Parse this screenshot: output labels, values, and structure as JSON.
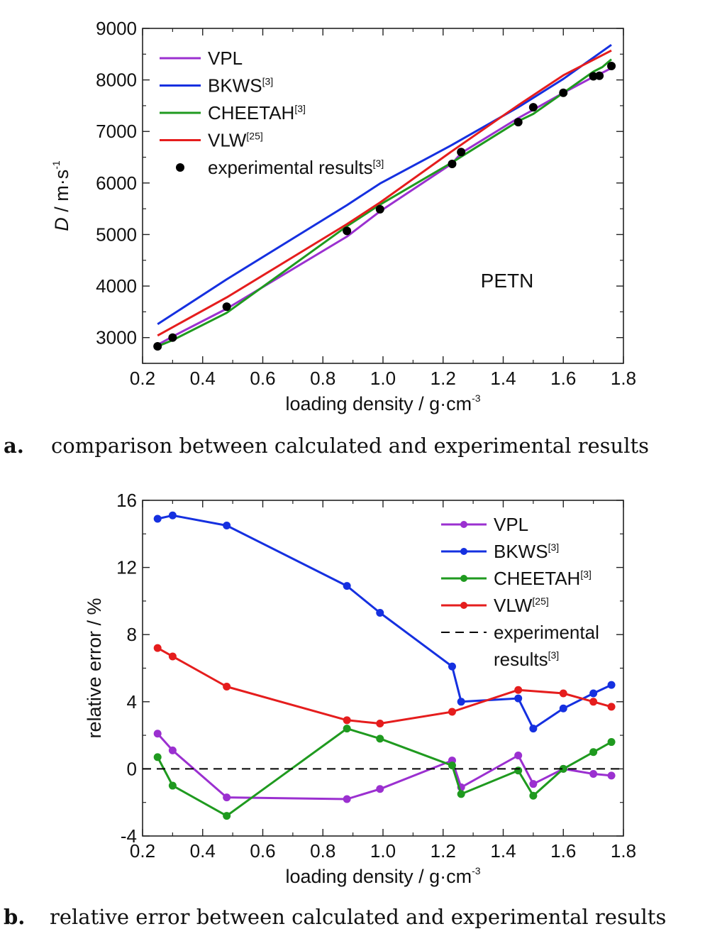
{
  "colors": {
    "VPL": "#9b30d0",
    "BKWS": "#1530e0",
    "CHEETAH": "#1f9a1f",
    "VLW": "#e51d1d",
    "experimental": "#000000"
  },
  "captions": {
    "a_letter": "a.",
    "a_text": "comparison between calculated and experimental results",
    "b_letter": "b.",
    "b_text": "relative error between calculated and experimental results"
  },
  "chart_data": [
    {
      "type": "line",
      "xlabel": "loading density / g·cm",
      "xlabel_sup": "-3",
      "ylabel_italic": "D",
      "ylabel": " / m·s",
      "ylabel_sup": "-1",
      "annotation": "PETN",
      "xlim": [
        0.2,
        1.8
      ],
      "ylim": [
        2500,
        9000
      ],
      "xticks": [
        "0.2",
        "0.4",
        "0.6",
        "0.8",
        "1.0",
        "1.2",
        "1.4",
        "1.6",
        "1.8"
      ],
      "yticks": [
        "3000",
        "4000",
        "5000",
        "6000",
        "7000",
        "8000",
        "9000"
      ],
      "legend_position": "top-left",
      "series": [
        {
          "key": "VPL",
          "name": "VPL",
          "sup": "",
          "style": "line",
          "x": [
            0.25,
            0.3,
            0.48,
            0.88,
            0.99,
            1.23,
            1.26,
            1.45,
            1.5,
            1.6,
            1.7,
            1.73,
            1.76
          ],
          "y": [
            2860,
            3020,
            3560,
            4960,
            5450,
            6380,
            6580,
            7260,
            7420,
            7750,
            8060,
            8140,
            8230
          ]
        },
        {
          "key": "BKWS",
          "name": "BKWS",
          "sup": "[3]",
          "style": "line",
          "x": [
            0.25,
            0.48,
            0.88,
            0.99,
            1.23,
            1.45,
            1.6,
            1.76
          ],
          "y": [
            3260,
            4130,
            5570,
            5990,
            6740,
            7470,
            8020,
            8680
          ]
        },
        {
          "key": "CHEETAH",
          "name": "CHEETAH",
          "sup": "[3]",
          "style": "line",
          "x": [
            0.25,
            0.3,
            0.48,
            0.88,
            0.99,
            1.23,
            1.26,
            1.45,
            1.5,
            1.6,
            1.7,
            1.73,
            1.76
          ],
          "y": [
            2830,
            2950,
            3480,
            5160,
            5580,
            6400,
            6510,
            7200,
            7340,
            7750,
            8160,
            8250,
            8400
          ]
        },
        {
          "key": "VLW",
          "name": "VLW",
          "sup": "[25]",
          "style": "line",
          "x": [
            0.25,
            0.48,
            0.88,
            0.99,
            1.23,
            1.45,
            1.6,
            1.76
          ],
          "y": [
            3040,
            3780,
            5200,
            5620,
            6620,
            7510,
            8090,
            8570
          ]
        },
        {
          "key": "experimental",
          "name": "experimental results",
          "sup": "[3]",
          "style": "points",
          "x": [
            0.25,
            0.3,
            0.48,
            0.88,
            0.99,
            1.23,
            1.26,
            1.45,
            1.5,
            1.6,
            1.7,
            1.72,
            1.76
          ],
          "y": [
            2830,
            3000,
            3600,
            5070,
            5490,
            6370,
            6600,
            7180,
            7470,
            7750,
            8070,
            8080,
            8270
          ]
        }
      ]
    },
    {
      "type": "line",
      "xlabel": "loading density / g·cm",
      "xlabel_sup": "-3",
      "ylabel": "relative error / %",
      "xlim": [
        0.2,
        1.8
      ],
      "ylim": [
        -4,
        16
      ],
      "xticks": [
        "0.2",
        "0.4",
        "0.6",
        "0.8",
        "1.0",
        "1.2",
        "1.4",
        "1.6",
        "1.8"
      ],
      "yticks": [
        "-4",
        "0",
        "4",
        "8",
        "12",
        "16"
      ],
      "legend_position": "top-right",
      "series": [
        {
          "key": "VPL",
          "name": "VPL",
          "sup": "",
          "style": "line-markers",
          "x": [
            0.25,
            0.3,
            0.48,
            0.88,
            0.99,
            1.23,
            1.26,
            1.45,
            1.5,
            1.6,
            1.7,
            1.76
          ],
          "y": [
            2.1,
            1.1,
            -1.7,
            -1.8,
            -1.2,
            0.5,
            -1.1,
            0.8,
            -0.9,
            0.0,
            -0.3,
            -0.4
          ]
        },
        {
          "key": "BKWS",
          "name": "BKWS",
          "sup": "[3]",
          "style": "line-markers",
          "x": [
            0.25,
            0.3,
            0.48,
            0.88,
            0.99,
            1.23,
            1.26,
            1.45,
            1.5,
            1.6,
            1.7,
            1.76
          ],
          "y": [
            14.9,
            15.1,
            14.5,
            10.9,
            9.3,
            6.1,
            4.0,
            4.2,
            2.4,
            3.6,
            4.5,
            5.0
          ]
        },
        {
          "key": "CHEETAH",
          "name": "CHEETAH",
          "sup": "[3]",
          "style": "line-markers",
          "x": [
            0.25,
            0.3,
            0.48,
            0.88,
            0.99,
            1.23,
            1.26,
            1.45,
            1.5,
            1.6,
            1.7,
            1.76
          ],
          "y": [
            0.7,
            -1.0,
            -2.8,
            2.4,
            1.8,
            0.2,
            -1.5,
            -0.1,
            -1.6,
            0.0,
            1.0,
            1.6
          ]
        },
        {
          "key": "VLW",
          "name": "VLW",
          "sup": "[25]",
          "style": "line-markers",
          "x": [
            0.25,
            0.3,
            0.48,
            0.88,
            0.99,
            1.23,
            1.45,
            1.6,
            1.7,
            1.76
          ],
          "y": [
            7.2,
            6.7,
            4.9,
            2.9,
            2.7,
            3.4,
            4.7,
            4.5,
            4.0,
            3.7
          ]
        },
        {
          "key": "experimental",
          "name": "experimental results",
          "name_line1": "experimental",
          "name_line2": "results",
          "sup": "[3]",
          "style": "dashed",
          "x": [
            0.2,
            1.8
          ],
          "y": [
            0,
            0
          ]
        }
      ]
    }
  ]
}
